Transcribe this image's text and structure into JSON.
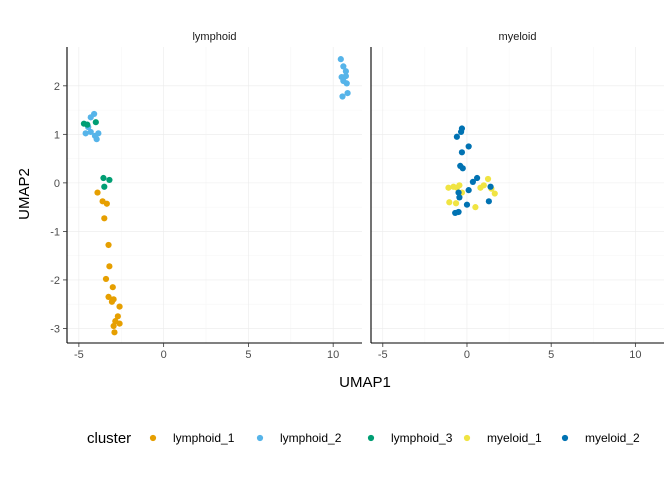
{
  "chart_data": {
    "type": "scatter",
    "title": "",
    "xlabel": "UMAP1",
    "ylabel": "UMAP2",
    "xlim": [
      -5.7,
      11.7
    ],
    "ylim": [
      -3.3,
      2.8
    ],
    "x_ticks": [
      -5,
      0,
      5,
      10
    ],
    "y_ticks": [
      -3,
      -2,
      -1,
      0,
      1,
      2
    ],
    "grid": true,
    "legend": {
      "title": "cluster",
      "position": "bottom",
      "entries": [
        {
          "name": "lymphoid_1",
          "color": "#E69F00"
        },
        {
          "name": "lymphoid_2",
          "color": "#56B4E9"
        },
        {
          "name": "lymphoid_3",
          "color": "#009E73"
        },
        {
          "name": "myeloid_1",
          "color": "#F0E442"
        },
        {
          "name": "myeloid_2",
          "color": "#0072B2"
        }
      ]
    },
    "facets": [
      {
        "label": "lymphoid",
        "series": [
          {
            "name": "lymphoid_1",
            "color": "#E69F00",
            "points": [
              [
                -3.9,
                -0.2
              ],
              [
                -3.6,
                -0.38
              ],
              [
                -3.35,
                -0.43
              ],
              [
                -3.5,
                -0.73
              ],
              [
                -3.25,
                -1.28
              ],
              [
                -3.2,
                -1.72
              ],
              [
                -3.4,
                -1.98
              ],
              [
                -3.0,
                -2.15
              ],
              [
                -3.25,
                -2.35
              ],
              [
                -2.95,
                -2.4
              ],
              [
                -3.05,
                -2.45
              ],
              [
                -2.6,
                -2.55
              ],
              [
                -2.7,
                -2.75
              ],
              [
                -2.85,
                -2.85
              ],
              [
                -2.6,
                -2.9
              ],
              [
                -2.95,
                -2.95
              ],
              [
                -2.9,
                -3.08
              ]
            ]
          },
          {
            "name": "lymphoid_2",
            "color": "#56B4E9",
            "points": [
              [
                -4.3,
                1.35
              ],
              [
                -4.1,
                1.42
              ],
              [
                -4.45,
                1.15
              ],
              [
                -4.3,
                1.05
              ],
              [
                -4.6,
                1.02
              ],
              [
                -3.85,
                1.02
              ],
              [
                -4.05,
                0.97
              ],
              [
                -3.95,
                0.9
              ],
              [
                10.45,
                2.55
              ],
              [
                10.6,
                2.4
              ],
              [
                10.75,
                2.3
              ],
              [
                10.5,
                2.18
              ],
              [
                10.75,
                2.2
              ],
              [
                10.6,
                2.1
              ],
              [
                10.8,
                2.05
              ],
              [
                10.85,
                1.85
              ],
              [
                10.55,
                1.78
              ]
            ]
          },
          {
            "name": "lymphoid_3",
            "color": "#009E73",
            "points": [
              [
                -4.7,
                1.22
              ],
              [
                -4.5,
                1.2
              ],
              [
                -4.0,
                1.25
              ],
              [
                -3.55,
                0.1
              ],
              [
                -3.2,
                0.06
              ],
              [
                -3.5,
                -0.08
              ]
            ]
          }
        ]
      },
      {
        "label": "myeloid",
        "series": [
          {
            "name": "myeloid_1",
            "color": "#F0E442",
            "points": [
              [
                -1.1,
                -0.1
              ],
              [
                -0.8,
                -0.08
              ],
              [
                -0.6,
                -0.1
              ],
              [
                -0.45,
                -0.05
              ],
              [
                -0.3,
                -0.2
              ],
              [
                -1.05,
                -0.4
              ],
              [
                -0.65,
                -0.42
              ],
              [
                0.5,
                -0.5
              ],
              [
                0.8,
                -0.1
              ],
              [
                1.0,
                -0.05
              ],
              [
                1.25,
                0.08
              ],
              [
                1.45,
                -0.12
              ],
              [
                1.65,
                -0.22
              ]
            ]
          },
          {
            "name": "myeloid_2",
            "color": "#0072B2",
            "points": [
              [
                -0.3,
                1.12
              ],
              [
                -0.35,
                1.05
              ],
              [
                -0.6,
                0.95
              ],
              [
                0.1,
                0.75
              ],
              [
                -0.3,
                0.63
              ],
              [
                -0.4,
                0.35
              ],
              [
                -0.25,
                0.3
              ],
              [
                0.6,
                0.1
              ],
              [
                0.35,
                0.02
              ],
              [
                1.4,
                -0.08
              ],
              [
                0.1,
                -0.15
              ],
              [
                -0.5,
                -0.2
              ],
              [
                -0.45,
                -0.3
              ],
              [
                0.0,
                -0.45
              ],
              [
                1.3,
                -0.38
              ],
              [
                -0.5,
                -0.6
              ],
              [
                -0.7,
                -0.62
              ]
            ]
          }
        ]
      }
    ]
  }
}
